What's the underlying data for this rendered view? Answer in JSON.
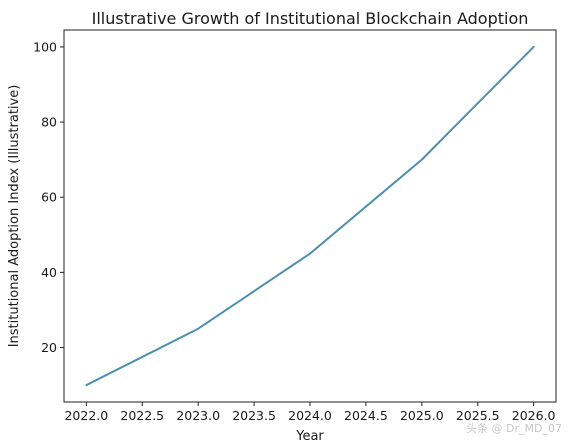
{
  "chart_data": {
    "type": "line",
    "title": "Illustrative Growth of Institutional Blockchain Adoption",
    "xlabel": "Year",
    "ylabel": "Institutional Adoption Index (Illustrative)",
    "x": [
      2022,
      2023,
      2024,
      2025,
      2026
    ],
    "series": [
      {
        "values": [
          10,
          25,
          45,
          70,
          100
        ]
      }
    ],
    "xlim": [
      2021.8,
      2026.2
    ],
    "ylim": [
      5.5,
      104.5
    ],
    "xticks": [
      2022.0,
      2022.5,
      2023.0,
      2023.5,
      2024.0,
      2024.5,
      2025.0,
      2025.5,
      2026.0
    ],
    "xtick_labels": [
      "2022.0",
      "2022.5",
      "2023.0",
      "2023.5",
      "2024.0",
      "2024.5",
      "2025.0",
      "2025.5",
      "2026.0"
    ],
    "yticks": [
      20,
      40,
      60,
      80,
      100
    ],
    "ytick_labels": [
      "20",
      "40",
      "60",
      "80",
      "100"
    ],
    "grid": false,
    "line_color": "#4a8fb0"
  },
  "watermark": "头条 @ Dr_MD_07"
}
